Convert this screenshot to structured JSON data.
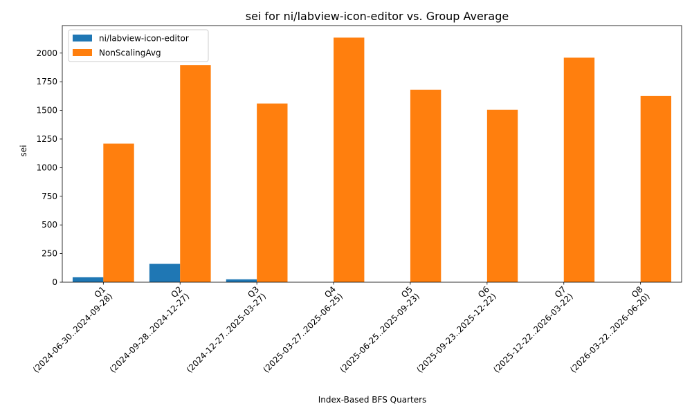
{
  "chart_data": {
    "type": "bar",
    "title": "sei for ni/labview-icon-editor vs. Group Average",
    "xlabel": "Index-Based BFS Quarters",
    "ylabel": "sei",
    "categories": [
      "Q1\n(2024-06-30..2024-09-28)",
      "Q2\n(2024-09-28..2024-12-27)",
      "Q3\n(2024-12-27..2025-03-27)",
      "Q4\n(2025-03-27..2025-06-25)",
      "Q5\n(2025-06-25..2025-09-23)",
      "Q6\n(2025-09-23..2025-12-22)",
      "Q7\n(2025-12-22..2026-03-22)",
      "Q8\n(2026-03-22..2026-06-20)"
    ],
    "series": [
      {
        "name": "ni/labview-icon-editor",
        "color": "#1f77b4",
        "values": [
          43,
          160,
          25,
          0,
          0,
          0,
          0,
          0
        ]
      },
      {
        "name": "NonScalingAvg",
        "color": "#ff7f0e",
        "values": [
          1210,
          1895,
          1560,
          2135,
          1680,
          1505,
          1960,
          1625
        ]
      }
    ],
    "ylim": [
      0,
      2240
    ],
    "yticks": [
      0,
      250,
      500,
      750,
      1000,
      1250,
      1500,
      1750,
      2000
    ],
    "grid": false,
    "legend_position": "top-left"
  }
}
